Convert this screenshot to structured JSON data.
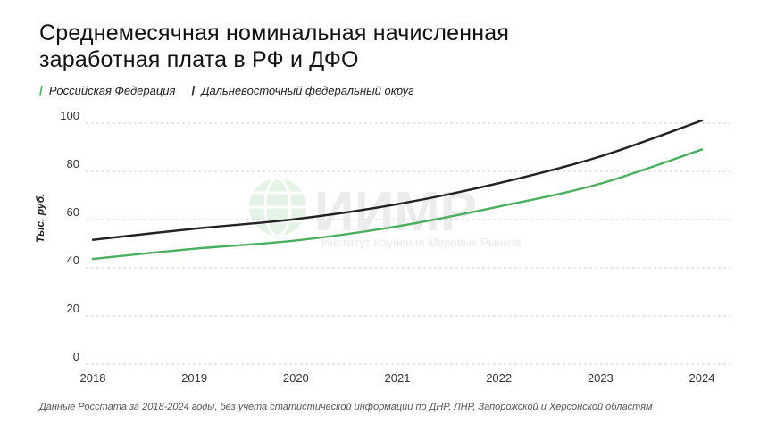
{
  "chart_data": {
    "type": "line",
    "title_line1": "Среднемесячная номинальная начисленная",
    "title_line2": "заработная плата в РФ и ДФО",
    "ylabel": "Тыс. руб.",
    "xlabel": "",
    "x": [
      "2018",
      "2019",
      "2020",
      "2021",
      "2022",
      "2023",
      "2024"
    ],
    "yticks": [
      "0",
      "20",
      "40",
      "60",
      "80",
      "100"
    ],
    "ylim": [
      0,
      100
    ],
    "grid": true,
    "legend_position": "top-left",
    "series": [
      {
        "name": "Российская Федерация",
        "color": "#4caf60",
        "values": [
          43.7,
          47.9,
          51.3,
          57.2,
          65.4,
          74.9,
          89.1
        ]
      },
      {
        "name": "Дальневосточный федеральный округ",
        "color": "#222222",
        "values": [
          51.6,
          56.2,
          60.2,
          66.4,
          75.1,
          86.2,
          101.1
        ]
      }
    ],
    "source_note": "Данные Росстата за 2018-2024 годы, без учета статистической информации по ДНР, ЛНР, Запорожской и Херсонской областям"
  },
  "watermark": {
    "brand": "ИИМР",
    "subtitle": "Институт Изучения Мировых Рынков"
  }
}
